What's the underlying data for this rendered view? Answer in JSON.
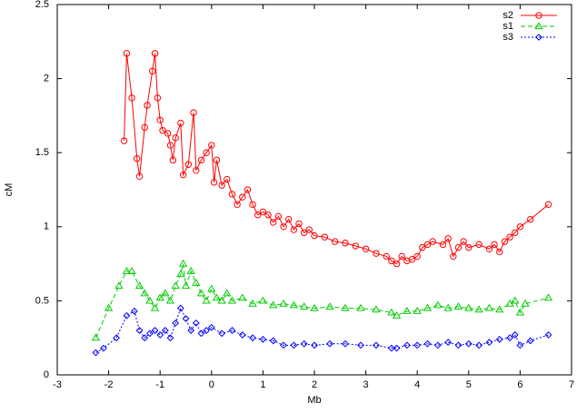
{
  "chart_data": {
    "type": "line",
    "xlabel": "Mb",
    "ylabel": "cM",
    "xlim": [
      -3,
      7
    ],
    "ylim": [
      0,
      2.5
    ],
    "xticks": [
      -3,
      -2,
      -1,
      0,
      1,
      2,
      3,
      4,
      5,
      6,
      7
    ],
    "yticks": [
      0,
      0.5,
      1,
      1.5,
      2,
      2.5
    ],
    "legend": "top-right",
    "series": [
      {
        "name": "s2",
        "color": "#ff0000",
        "marker": "circle",
        "line_style": "solid",
        "x": [
          -1.7,
          -1.65,
          -1.55,
          -1.45,
          -1.4,
          -1.3,
          -1.25,
          -1.15,
          -1.1,
          -1.05,
          -1.0,
          -0.95,
          -0.85,
          -0.8,
          -0.75,
          -0.7,
          -0.6,
          -0.55,
          -0.45,
          -0.35,
          -0.3,
          -0.2,
          -0.1,
          0.0,
          0.05,
          0.1,
          0.2,
          0.3,
          0.4,
          0.5,
          0.6,
          0.7,
          0.8,
          0.9,
          1.0,
          1.1,
          1.2,
          1.3,
          1.4,
          1.5,
          1.6,
          1.7,
          1.8,
          1.9,
          2.0,
          2.2,
          2.4,
          2.6,
          2.8,
          3.0,
          3.2,
          3.4,
          3.5,
          3.6,
          3.7,
          3.8,
          3.9,
          4.0,
          4.1,
          4.2,
          4.3,
          4.5,
          4.6,
          4.7,
          4.8,
          4.9,
          5.0,
          5.2,
          5.4,
          5.5,
          5.6,
          5.7,
          5.8,
          5.9,
          6.0,
          6.2,
          6.55
        ],
        "values": [
          1.58,
          2.17,
          1.87,
          1.46,
          1.34,
          1.67,
          1.82,
          2.05,
          2.17,
          1.87,
          1.72,
          1.65,
          1.63,
          1.55,
          1.45,
          1.6,
          1.7,
          1.35,
          1.42,
          1.77,
          1.38,
          1.45,
          1.5,
          1.55,
          1.3,
          1.45,
          1.28,
          1.32,
          1.22,
          1.15,
          1.2,
          1.25,
          1.15,
          1.08,
          1.1,
          1.08,
          1.03,
          1.07,
          1.0,
          1.05,
          0.98,
          1.02,
          0.96,
          0.98,
          0.94,
          0.93,
          0.9,
          0.89,
          0.87,
          0.85,
          0.82,
          0.8,
          0.77,
          0.75,
          0.8,
          0.77,
          0.78,
          0.8,
          0.86,
          0.88,
          0.9,
          0.88,
          0.92,
          0.8,
          0.86,
          0.9,
          0.86,
          0.88,
          0.85,
          0.88,
          0.83,
          0.9,
          0.93,
          0.96,
          1.0,
          1.05,
          1.15
        ]
      },
      {
        "name": "s1",
        "color": "#00cc00",
        "marker": "triangle",
        "line_style": "dashed",
        "x": [
          -2.25,
          -2.0,
          -1.8,
          -1.65,
          -1.55,
          -1.4,
          -1.3,
          -1.2,
          -1.1,
          -1.0,
          -0.9,
          -0.8,
          -0.7,
          -0.6,
          -0.55,
          -0.5,
          -0.4,
          -0.3,
          -0.2,
          -0.1,
          0.0,
          0.1,
          0.2,
          0.3,
          0.4,
          0.6,
          0.8,
          1.0,
          1.2,
          1.4,
          1.6,
          1.8,
          2.0,
          2.3,
          2.6,
          2.9,
          3.2,
          3.5,
          3.6,
          3.8,
          4.0,
          4.2,
          4.4,
          4.6,
          4.8,
          5.0,
          5.2,
          5.4,
          5.6,
          5.8,
          5.9,
          6.0,
          6.1,
          6.55
        ],
        "values": [
          0.25,
          0.45,
          0.6,
          0.7,
          0.7,
          0.6,
          0.55,
          0.5,
          0.45,
          0.52,
          0.55,
          0.5,
          0.6,
          0.68,
          0.75,
          0.6,
          0.7,
          0.62,
          0.55,
          0.5,
          0.58,
          0.52,
          0.5,
          0.55,
          0.5,
          0.52,
          0.48,
          0.5,
          0.47,
          0.48,
          0.47,
          0.46,
          0.45,
          0.46,
          0.45,
          0.45,
          0.44,
          0.42,
          0.4,
          0.43,
          0.43,
          0.45,
          0.47,
          0.45,
          0.46,
          0.45,
          0.44,
          0.45,
          0.44,
          0.48,
          0.5,
          0.42,
          0.48,
          0.52
        ]
      },
      {
        "name": "s3",
        "color": "#0000ff",
        "marker": "diamond",
        "line_style": "dotted",
        "x": [
          -2.25,
          -2.1,
          -1.85,
          -1.65,
          -1.5,
          -1.4,
          -1.3,
          -1.2,
          -1.1,
          -1.0,
          -0.9,
          -0.8,
          -0.7,
          -0.6,
          -0.5,
          -0.4,
          -0.3,
          -0.2,
          -0.1,
          0.0,
          0.2,
          0.4,
          0.6,
          0.8,
          1.0,
          1.2,
          1.4,
          1.6,
          1.8,
          2.0,
          2.3,
          2.6,
          2.9,
          3.2,
          3.5,
          3.6,
          3.8,
          4.0,
          4.2,
          4.4,
          4.6,
          4.8,
          5.0,
          5.2,
          5.4,
          5.6,
          5.8,
          5.9,
          6.0,
          6.2,
          6.55
        ],
        "values": [
          0.15,
          0.18,
          0.25,
          0.4,
          0.43,
          0.3,
          0.25,
          0.28,
          0.3,
          0.27,
          0.3,
          0.25,
          0.35,
          0.45,
          0.38,
          0.3,
          0.35,
          0.28,
          0.3,
          0.32,
          0.28,
          0.3,
          0.27,
          0.25,
          0.24,
          0.23,
          0.2,
          0.2,
          0.21,
          0.2,
          0.21,
          0.21,
          0.2,
          0.2,
          0.18,
          0.18,
          0.2,
          0.2,
          0.21,
          0.2,
          0.22,
          0.2,
          0.21,
          0.2,
          0.22,
          0.24,
          0.25,
          0.27,
          0.2,
          0.23,
          0.27
        ]
      }
    ]
  }
}
